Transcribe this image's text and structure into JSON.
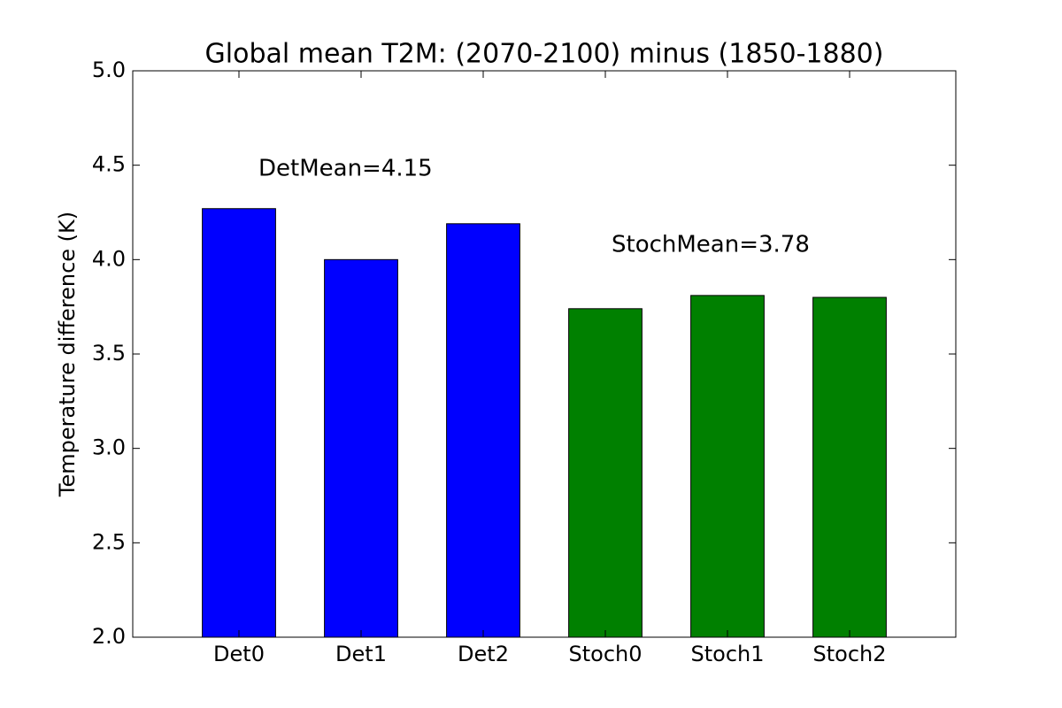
{
  "chart_data": {
    "type": "bar",
    "title": "Global mean T2M: (2070-2100) minus (1850-1880)",
    "y_label": "Temperature difference (K)",
    "categories": [
      "Det0",
      "Det1",
      "Det2",
      "Stoch0",
      "Stoch1",
      "Stoch2"
    ],
    "values": [
      4.27,
      4.0,
      4.19,
      3.74,
      3.81,
      3.8
    ],
    "colors": [
      "#0000ff",
      "#0000ff",
      "#0000ff",
      "#008000",
      "#008000",
      "#008000"
    ],
    "annotations": [
      "DetMean=4.15",
      "StochMean=3.78"
    ],
    "ylim": [
      2.0,
      5.0
    ],
    "yticks": [
      {
        "value": 2.0,
        "label": "2.0"
      },
      2.5,
      {
        "value": 3.0,
        "label": "3.0"
      },
      3.5,
      {
        "value": 4.0,
        "label": "4.0"
      },
      4.5,
      {
        "value": 5.0,
        "label": "5.0"
      }
    ],
    "grid": false
  }
}
